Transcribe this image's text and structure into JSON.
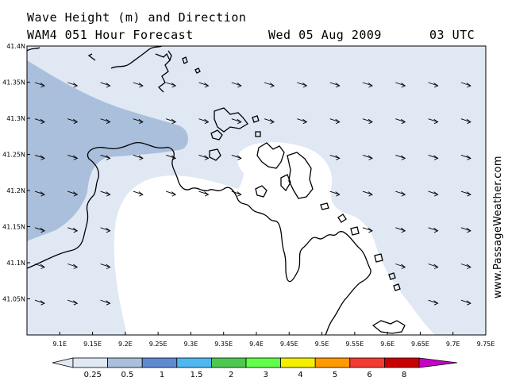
{
  "header": {
    "title": "Wave Height (m) and Direction",
    "model": "WAM4 051 Hour Forecast",
    "date": "Wed 05 Aug 2009",
    "time": "03 UTC"
  },
  "credit": "www.PassageWeather.com",
  "map": {
    "lon_range": [
      9.05,
      9.75
    ],
    "lat_range": [
      41.0,
      41.4
    ],
    "lon_ticks": [
      "9.1E",
      "9.15E",
      "9.2E",
      "9.25E",
      "9.3E",
      "9.35E",
      "9.4E",
      "9.45E",
      "9.5E",
      "9.55E",
      "9.6E",
      "9.65E",
      "9.7E",
      "9.75E"
    ],
    "lat_ticks": [
      "41.05N",
      "41.1N",
      "41.15N",
      "41.2N",
      "41.25N",
      "41.3N",
      "41.35N",
      "41.4N"
    ],
    "wave_direction": "east-southeast",
    "colors": {
      "land": "#ffffff",
      "sea_low": "#e0e8f4",
      "sea_mid": "#a9bfdc",
      "coast": "#000000"
    }
  },
  "legend": {
    "labels": [
      "0.25",
      "0.5",
      "1",
      "1.5",
      "2",
      "3",
      "4",
      "5",
      "6",
      "8"
    ],
    "colors": [
      "#e0e8f4",
      "#a9bfdc",
      "#5f8ad0",
      "#4fb8f0",
      "#50c850",
      "#62ff4a",
      "#f4ee00",
      "#ff9a00",
      "#f23c32",
      "#c80000",
      "#c800c8"
    ]
  }
}
